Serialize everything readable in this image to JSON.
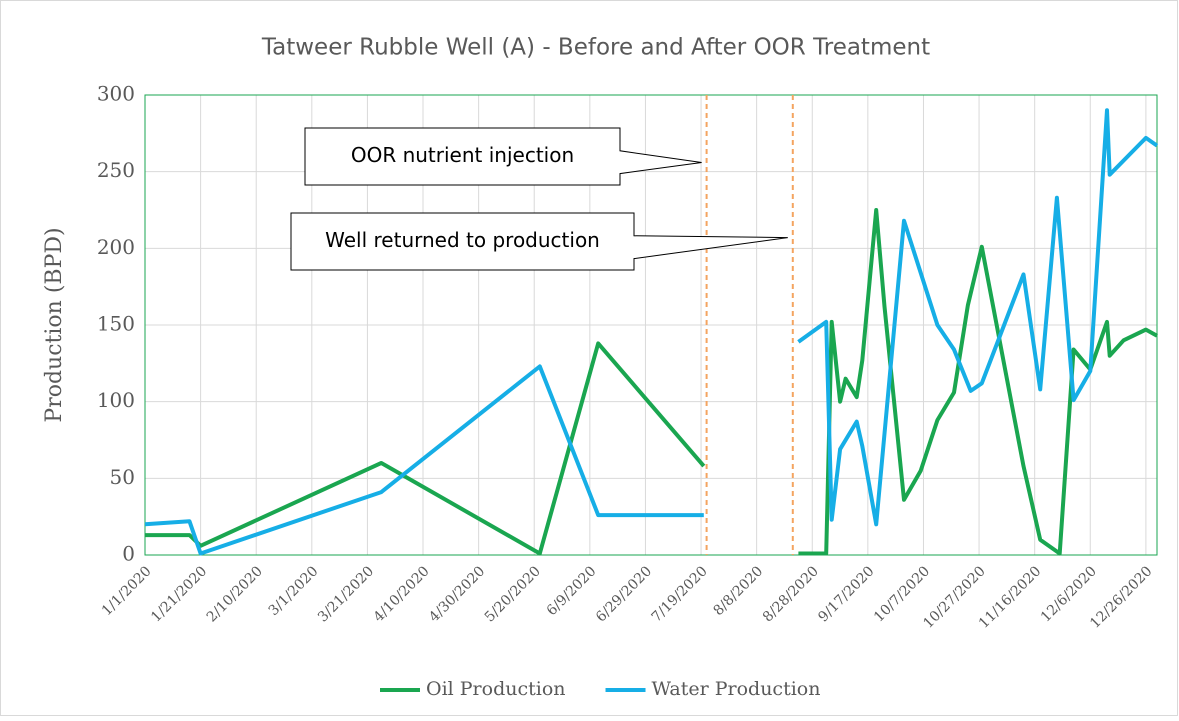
{
  "chart_data": {
    "type": "line",
    "title": "Tatweer Rubble Well (A) - Before and After OOR Treatment",
    "y_label": "Production (BPD)",
    "xlim": [
      "1/1/2020",
      "12/30/2020"
    ],
    "xticks": [
      "1/1/2020",
      "1/21/2020",
      "2/10/2020",
      "3/1/2020",
      "3/21/2020",
      "4/10/2020",
      "4/30/2020",
      "5/20/2020",
      "6/9/2020",
      "6/29/2020",
      "7/19/2020",
      "8/8/2020",
      "8/28/2020",
      "9/17/2020",
      "10/7/2020",
      "10/27/2020",
      "11/16/2020",
      "12/6/2020",
      "12/26/2020"
    ],
    "ylim": [
      0,
      300
    ],
    "yticks": [
      0,
      50,
      100,
      150,
      200,
      250,
      300
    ],
    "grid": true,
    "legend": "bottom",
    "series": [
      {
        "name": "Oil Production",
        "color": "#1aa650",
        "x": [
          "1/1/2020",
          "1/17/2020",
          "1/21/2020",
          "3/26/2020",
          "5/22/2020",
          "6/12/2020",
          "7/20/2020",
          "8/8/2020",
          "8/23/2020",
          "9/2/2020",
          "9/4/2020",
          "9/7/2020",
          "9/9/2020",
          "9/13/2020",
          "9/15/2020",
          "9/20/2020",
          "9/23/2020",
          "9/30/2020",
          "10/6/2020",
          "10/12/2020",
          "10/18/2020",
          "10/23/2020",
          "10/28/2020",
          "11/12/2020",
          "11/18/2020",
          "11/25/2020",
          "11/30/2020",
          "12/6/2020",
          "12/12/2020",
          "12/13/2020",
          "12/18/2020",
          "12/26/2020",
          "12/30/2020"
        ],
        "values": [
          13,
          13,
          6,
          60,
          1,
          138,
          58,
          null,
          1,
          1,
          152,
          100,
          115,
          103,
          127,
          225,
          162,
          36,
          55,
          88,
          106,
          163,
          201,
          58,
          10,
          1,
          134,
          121,
          152,
          130,
          140,
          147,
          143
        ]
      },
      {
        "name": "Water Production",
        "color": "#16aee6",
        "x": [
          "1/1/2020",
          "1/17/2020",
          "1/21/2020",
          "3/26/2020",
          "5/22/2020",
          "6/12/2020",
          "7/20/2020",
          "8/8/2020",
          "8/23/2020",
          "9/2/2020",
          "9/4/2020",
          "9/7/2020",
          "9/13/2020",
          "9/15/2020",
          "9/20/2020",
          "9/30/2020",
          "10/12/2020",
          "10/18/2020",
          "10/24/2020",
          "10/28/2020",
          "11/12/2020",
          "11/18/2020",
          "11/24/2020",
          "11/30/2020",
          "12/6/2020",
          "12/12/2020",
          "12/13/2020",
          "12/26/2020",
          "12/30/2020"
        ],
        "values": [
          20,
          22,
          1,
          41,
          123,
          26,
          26,
          null,
          139,
          152,
          23,
          69,
          87,
          71,
          20,
          218,
          150,
          134,
          107,
          112,
          183,
          108,
          233,
          101,
          120,
          290,
          248,
          272,
          267
        ]
      }
    ],
    "annotations": [
      {
        "text": "OOR nutrient injection",
        "x": "7/21/2020",
        "y": 256
      },
      {
        "text": "Well returned to production",
        "x": "8/21/2020",
        "y": 207
      }
    ]
  }
}
